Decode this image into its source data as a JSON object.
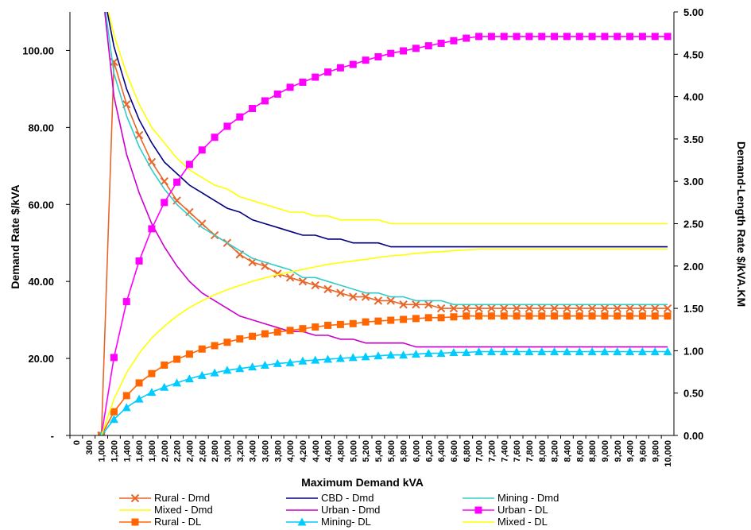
{
  "chart_data": {
    "type": "line",
    "xlabel": "Maximum Demand kVA",
    "ylabel_left": "Demand Rate $/kVA",
    "ylabel_right": "Demand-Length Rate $/kVA.KM",
    "x_ticks": [
      "0",
      "300",
      "1,000",
      "1,200",
      "1,400",
      "1,600",
      "1,800",
      "2,000",
      "2,200",
      "2,400",
      "2,600",
      "2,800",
      "3,000",
      "3,200",
      "3,400",
      "3,600",
      "3,800",
      "4,000",
      "4,200",
      "4,400",
      "4,600",
      "4,800",
      "5,000",
      "5,200",
      "5,400",
      "5,600",
      "5,800",
      "6,000",
      "6,200",
      "6,400",
      "6,600",
      "6,800",
      "7,000",
      "7,200",
      "7,400",
      "7,600",
      "7,800",
      "8,000",
      "8,200",
      "8,400",
      "8,600",
      "8,800",
      "9,000",
      "9,200",
      "9,400",
      "9,600",
      "9,800",
      "10,000"
    ],
    "y_left_ticks": [
      "-",
      "20.00",
      "40.00",
      "60.00",
      "80.00",
      "100.00"
    ],
    "y_left_lim": [
      0,
      110
    ],
    "y_right_ticks": [
      "0.00",
      "0.50",
      "1.00",
      "1.50",
      "2.00",
      "2.50",
      "3.00",
      "3.50",
      "4.00",
      "4.50",
      "5.00"
    ],
    "y_right_lim": [
      0,
      5
    ],
    "series": [
      {
        "name": "Rural - Dmd",
        "axis": "left",
        "color": "#E8662A",
        "marker": "x",
        "values": [
          null,
          null,
          0,
          97,
          86,
          78,
          71,
          66,
          61,
          58,
          55,
          52,
          50,
          47,
          45,
          44,
          42,
          41,
          40,
          39,
          38,
          37,
          36,
          36,
          35,
          35,
          34,
          34,
          34,
          33,
          33,
          33,
          33,
          33,
          33,
          33,
          33,
          33,
          33,
          33,
          33,
          33,
          33,
          33,
          33,
          33,
          33,
          33
        ]
      },
      {
        "name": "CBD - Dmd",
        "axis": "left",
        "color": "#000080",
        "marker": "none",
        "values": [
          null,
          null,
          118,
          101,
          90,
          82,
          76,
          71,
          68,
          65,
          63,
          61,
          59,
          58,
          56,
          55,
          54,
          53,
          52,
          52,
          51,
          51,
          50,
          50,
          50,
          49,
          49,
          49,
          49,
          49,
          49,
          49,
          49,
          49,
          49,
          49,
          49,
          49,
          49,
          49,
          49,
          49,
          49,
          49,
          49,
          49,
          49,
          49
        ]
      },
      {
        "name": "Mining - Dmd",
        "axis": "left",
        "color": "#33CCCC",
        "marker": "none",
        "values": [
          null,
          null,
          118,
          94,
          83,
          75,
          69,
          64,
          60,
          57,
          54,
          52,
          50,
          48,
          46,
          45,
          44,
          43,
          41,
          41,
          40,
          39,
          38,
          37,
          37,
          36,
          36,
          35,
          35,
          35,
          34,
          34,
          34,
          34,
          34,
          34,
          34,
          34,
          34,
          34,
          34,
          34,
          34,
          34,
          34,
          34,
          34,
          34
        ]
      },
      {
        "name": "Mixed - Dmd",
        "axis": "left",
        "color": "#FFFF00",
        "marker": "none",
        "values": [
          null,
          null,
          118,
          104,
          94,
          86,
          80,
          76,
          72,
          69,
          67,
          65,
          64,
          62,
          61,
          60,
          59,
          58,
          58,
          57,
          57,
          56,
          56,
          56,
          56,
          55,
          55,
          55,
          55,
          55,
          55,
          55,
          55,
          55,
          55,
          55,
          55,
          55,
          55,
          55,
          55,
          55,
          55,
          55,
          55,
          55,
          55,
          55
        ]
      },
      {
        "name": "Urban - Dmd",
        "axis": "left",
        "color": "#CC00CC",
        "marker": "none",
        "values": [
          null,
          null,
          118,
          88,
          73,
          63,
          55,
          49,
          44,
          40,
          37,
          35,
          33,
          31,
          30,
          29,
          28,
          27,
          27,
          26,
          26,
          25,
          25,
          24,
          24,
          24,
          24,
          23,
          23,
          23,
          23,
          23,
          23,
          23,
          23,
          23,
          23,
          23,
          23,
          23,
          23,
          23,
          23,
          23,
          23,
          23,
          23,
          23
        ]
      },
      {
        "name": "Urban - DL",
        "axis": "right",
        "color": "#FF00FF",
        "marker": "square",
        "values": [
          null,
          null,
          0,
          0.92,
          1.58,
          2.06,
          2.44,
          2.75,
          2.99,
          3.2,
          3.37,
          3.52,
          3.65,
          3.76,
          3.86,
          3.95,
          4.03,
          4.11,
          4.17,
          4.23,
          4.29,
          4.34,
          4.38,
          4.43,
          4.47,
          4.51,
          4.54,
          4.57,
          4.6,
          4.63,
          4.66,
          4.69,
          4.71,
          4.71,
          4.71,
          4.71,
          4.71,
          4.71,
          4.71,
          4.71,
          4.71,
          4.71,
          4.71,
          4.71,
          4.71,
          4.71,
          4.71,
          4.71
        ]
      },
      {
        "name": "Rural - DL",
        "axis": "right",
        "color": "#FF6600",
        "marker": "square",
        "values": [
          null,
          null,
          0,
          0.28,
          0.47,
          0.62,
          0.73,
          0.83,
          0.9,
          0.96,
          1.02,
          1.06,
          1.1,
          1.14,
          1.17,
          1.2,
          1.22,
          1.24,
          1.26,
          1.28,
          1.3,
          1.31,
          1.32,
          1.34,
          1.35,
          1.36,
          1.37,
          1.38,
          1.39,
          1.39,
          1.4,
          1.41,
          1.41,
          1.41,
          1.41,
          1.41,
          1.41,
          1.41,
          1.41,
          1.41,
          1.41,
          1.41,
          1.41,
          1.41,
          1.41,
          1.41,
          1.41,
          1.41
        ]
      },
      {
        "name": "Mining- DL",
        "axis": "right",
        "color": "#00CCFF",
        "marker": "triangle",
        "values": [
          null,
          null,
          0,
          0.19,
          0.33,
          0.43,
          0.51,
          0.57,
          0.62,
          0.67,
          0.71,
          0.74,
          0.77,
          0.79,
          0.81,
          0.83,
          0.85,
          0.86,
          0.88,
          0.89,
          0.9,
          0.91,
          0.92,
          0.93,
          0.94,
          0.95,
          0.95,
          0.96,
          0.97,
          0.97,
          0.98,
          0.98,
          0.99,
          0.99,
          0.99,
          0.99,
          0.99,
          0.99,
          0.99,
          0.99,
          0.99,
          0.99,
          0.99,
          0.99,
          0.99,
          0.99,
          0.99,
          0.99
        ]
      },
      {
        "name": "Mixed - DL",
        "axis": "right",
        "color": "#FFFF00",
        "marker": "none",
        "values": [
          null,
          null,
          0,
          0.43,
          0.74,
          0.97,
          1.15,
          1.29,
          1.41,
          1.51,
          1.59,
          1.66,
          1.72,
          1.77,
          1.82,
          1.86,
          1.9,
          1.93,
          1.96,
          1.99,
          2.02,
          2.04,
          2.06,
          2.08,
          2.1,
          2.12,
          2.13,
          2.15,
          2.16,
          2.17,
          2.18,
          2.19,
          2.2,
          2.2,
          2.2,
          2.2,
          2.2,
          2.2,
          2.2,
          2.2,
          2.2,
          2.2,
          2.2,
          2.2,
          2.2,
          2.2,
          2.2,
          2.2
        ]
      }
    ],
    "legend": {
      "placement": "bottom",
      "rows": [
        [
          "Rural - Dmd",
          "CBD - Dmd",
          "Mining - Dmd"
        ],
        [
          "Mixed - Dmd",
          "Urban - Dmd",
          "Urban - DL"
        ],
        [
          "Rural - DL",
          "Mining- DL",
          "Mixed - DL"
        ]
      ]
    }
  }
}
